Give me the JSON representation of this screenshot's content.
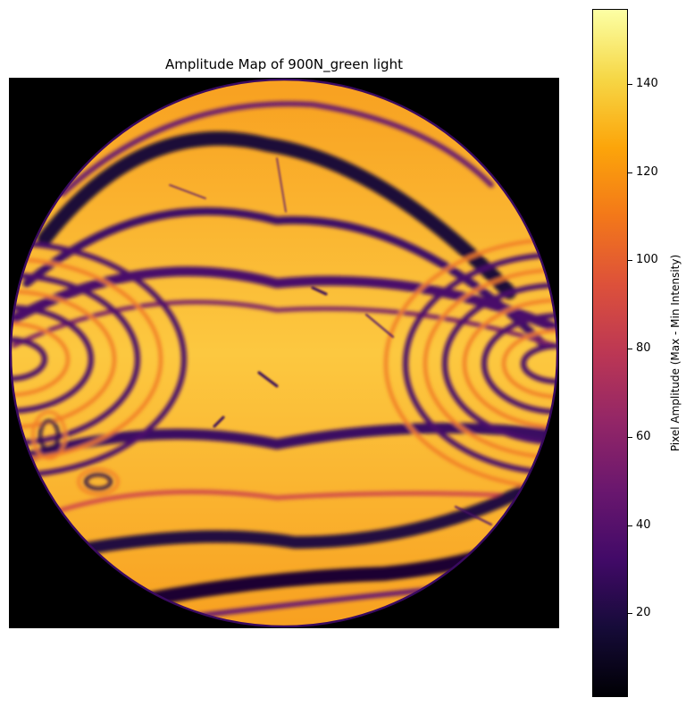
{
  "chart_data": {
    "type": "heatmap",
    "title": "Amplitude Map of 900N_green light",
    "colormap": "inferno",
    "colorbar": {
      "label": "Pixel Amplitude (Max - Min Intensity)",
      "range": [
        1,
        157
      ],
      "ticks": [
        20,
        40,
        60,
        80,
        100,
        120,
        140
      ]
    },
    "background_color": "#000000"
  }
}
